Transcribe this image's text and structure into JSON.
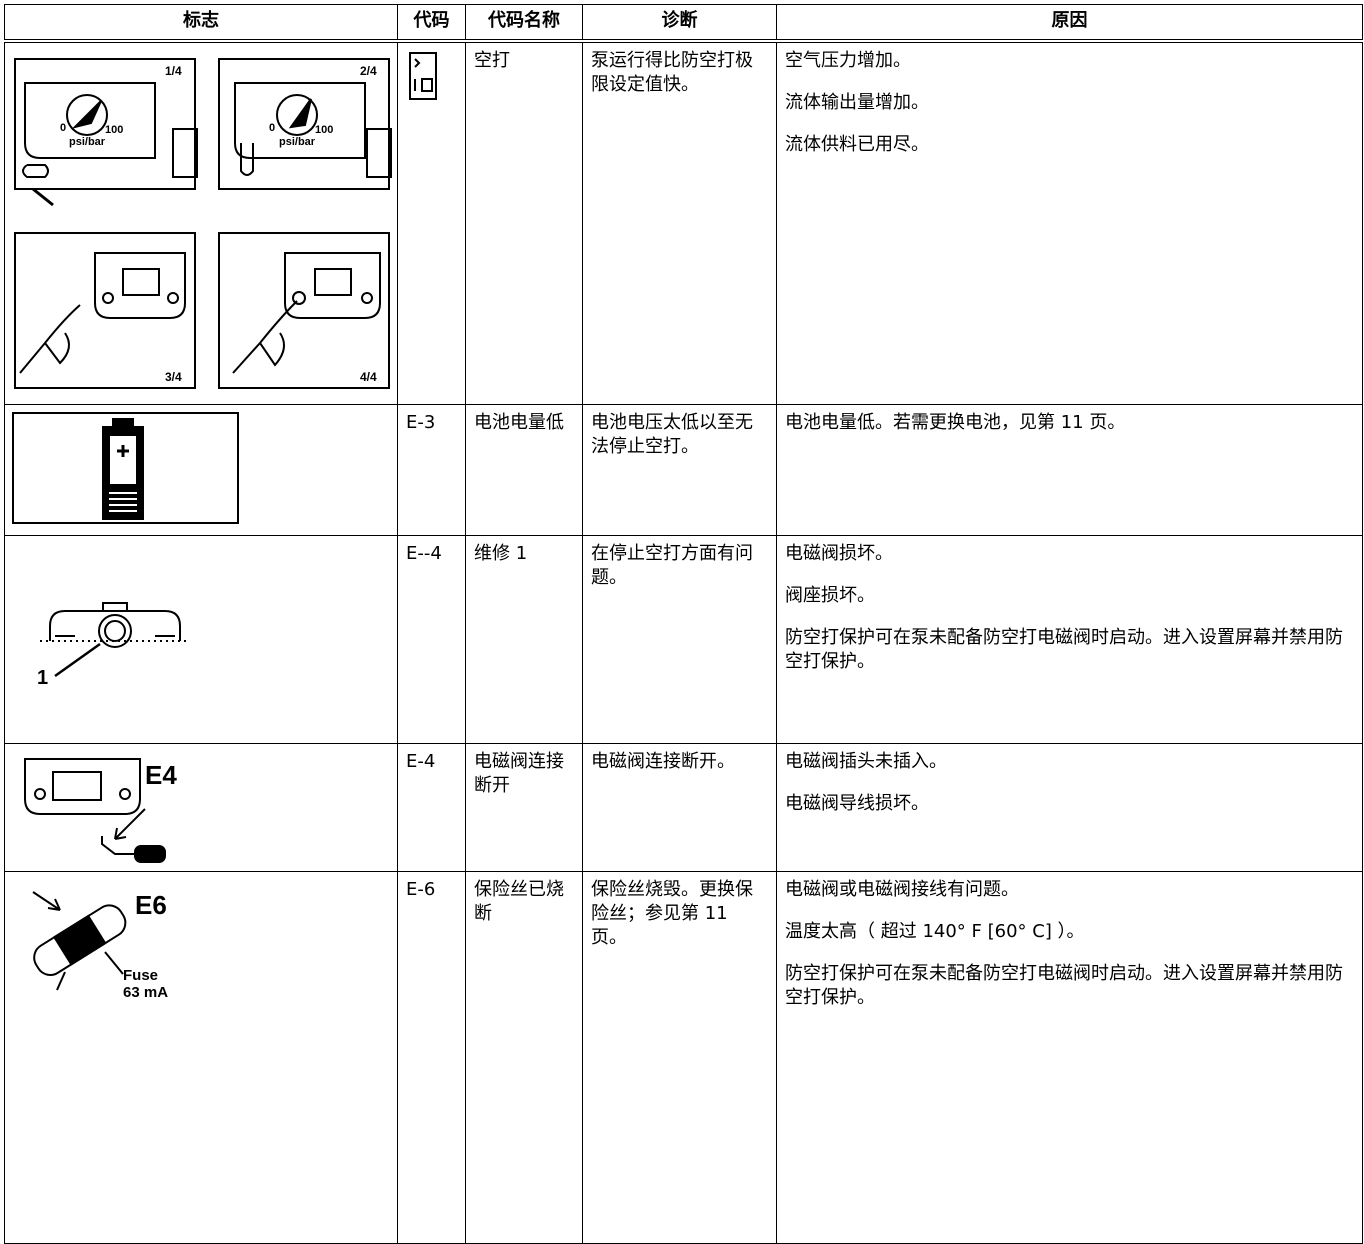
{
  "table": {
    "headers": [
      "标志",
      "代码",
      "代码名称",
      "诊断",
      "原因"
    ],
    "rows": [
      {
        "symbol_texts": [
          "1/4",
          "2/4",
          "3/4",
          "4/4",
          "0",
          "100",
          "psi/bar"
        ],
        "name": "空打",
        "diagnosis": "泵运行得比防空打极限设定值快。",
        "causes": [
          "空气压力增加。",
          "流体输出量增加。",
          "流体供料已用尽。"
        ]
      },
      {
        "code": "E-3",
        "name": "电池电量低",
        "diagnosis": "电池电压太低以至无法停止空打。",
        "causes": [
          "电池电量低。若需更换电池，见第 11 页。"
        ]
      },
      {
        "symbol_texts": [
          "1"
        ],
        "code": "E--4",
        "name": "维修 1",
        "diagnosis": "在停止空打方面有问题。",
        "causes": [
          "电磁阀损坏。",
          "阀座损坏。",
          "防空打保护可在泵未配备防空打电磁阀时启动。进入设置屏幕并禁用防空打保护。"
        ]
      },
      {
        "symbol_texts": [
          "E4"
        ],
        "code": "E-4",
        "name": "电磁阀连接断开",
        "diagnosis": "电磁阀连接断开。",
        "causes": [
          "电磁阀插头未插入。",
          "电磁阀导线损坏。"
        ]
      },
      {
        "symbol_texts": [
          "E6",
          "Fuse",
          "63 mA"
        ],
        "code": "E-6",
        "name": "保险丝已烧断",
        "diagnosis": "保险丝烧毁。更换保险丝；参见第 11 页。",
        "causes": [
          "电磁阀或电磁阀接线有问题。",
          "温度太高（ 超过 140° F [60° C] ）。",
          "防空打保护可在泵未配备防空打电磁阀时启动。进入设置屏幕并禁用防空打保护。"
        ]
      }
    ]
  }
}
